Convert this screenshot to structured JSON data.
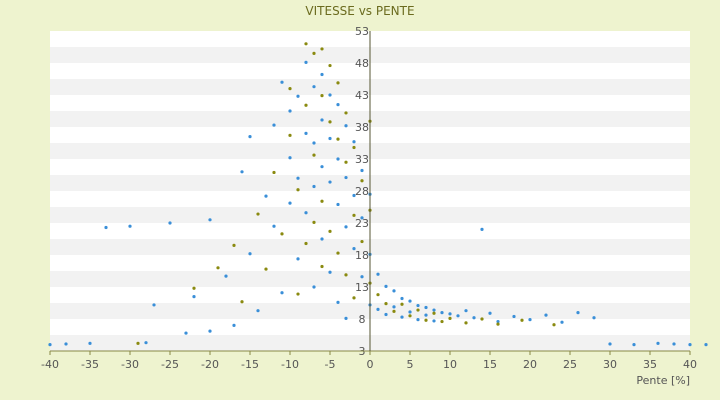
{
  "chart_data": {
    "type": "scatter",
    "title": "VITESSE vs PENTE",
    "xlabel": "Pente [%]",
    "ylabel": "",
    "xlim": [
      -40,
      40
    ],
    "ylim": [
      3,
      53
    ],
    "xticks": [
      -40,
      -35,
      -30,
      -25,
      -20,
      -15,
      -10,
      -5,
      0,
      5,
      10,
      15,
      20,
      25,
      30,
      35,
      40
    ],
    "yticks": [
      3,
      8,
      13,
      18,
      23,
      28,
      33,
      38,
      43,
      48,
      53
    ],
    "grid": "alternating horizontal bands",
    "legend": "none",
    "series": [
      {
        "color": "#3a8fd8",
        "points": [
          [
            -40,
            4.0
          ],
          [
            -38,
            4.1
          ],
          [
            -35,
            4.2
          ],
          [
            -33,
            22.3
          ],
          [
            -30,
            22.5
          ],
          [
            -28,
            4.3
          ],
          [
            -27,
            10.2
          ],
          [
            -25,
            23.0
          ],
          [
            -23,
            5.8
          ],
          [
            -22,
            11.5
          ],
          [
            -20,
            23.5
          ],
          [
            -20,
            6.1
          ],
          [
            -18,
            14.7
          ],
          [
            -17,
            7.0
          ],
          [
            -16,
            31.0
          ],
          [
            -15,
            36.5
          ],
          [
            -15,
            18.2
          ],
          [
            -14,
            9.3
          ],
          [
            -13,
            27.2
          ],
          [
            -12,
            38.3
          ],
          [
            -12,
            22.5
          ],
          [
            -11,
            45.0
          ],
          [
            -11,
            12.1
          ],
          [
            -10,
            40.5
          ],
          [
            -10,
            33.2
          ],
          [
            -10,
            26.1
          ],
          [
            -9,
            42.8
          ],
          [
            -9,
            30.0
          ],
          [
            -9,
            17.4
          ],
          [
            -8,
            48.1
          ],
          [
            -8,
            37.0
          ],
          [
            -8,
            24.6
          ],
          [
            -7,
            44.3
          ],
          [
            -7,
            35.5
          ],
          [
            -7,
            28.7
          ],
          [
            -7,
            13.0
          ],
          [
            -6,
            46.2
          ],
          [
            -6,
            39.1
          ],
          [
            -6,
            31.8
          ],
          [
            -6,
            20.5
          ],
          [
            -5,
            43.0
          ],
          [
            -5,
            36.2
          ],
          [
            -5,
            29.4
          ],
          [
            -5,
            15.3
          ],
          [
            -4,
            41.5
          ],
          [
            -4,
            33.0
          ],
          [
            -4,
            25.9
          ],
          [
            -4,
            10.6
          ],
          [
            -3,
            38.2
          ],
          [
            -3,
            30.1
          ],
          [
            -3,
            22.4
          ],
          [
            -3,
            8.1
          ],
          [
            -2,
            35.7
          ],
          [
            -2,
            27.3
          ],
          [
            -2,
            19.0
          ],
          [
            -1,
            31.2
          ],
          [
            -1,
            23.8
          ],
          [
            -1,
            14.6
          ],
          [
            0,
            27.5
          ],
          [
            0,
            18.1
          ],
          [
            0,
            10.2
          ],
          [
            1,
            15.0
          ],
          [
            1,
            9.5
          ],
          [
            2,
            13.1
          ],
          [
            2,
            8.7
          ],
          [
            3,
            12.4
          ],
          [
            3,
            9.9
          ],
          [
            4,
            11.2
          ],
          [
            4,
            8.3
          ],
          [
            5,
            10.8
          ],
          [
            5,
            9.1
          ],
          [
            6,
            10.1
          ],
          [
            6,
            7.9
          ],
          [
            7,
            9.8
          ],
          [
            7,
            8.6
          ],
          [
            8,
            9.4
          ],
          [
            8,
            7.7
          ],
          [
            9,
            9.0
          ],
          [
            10,
            8.8
          ],
          [
            11,
            8.5
          ],
          [
            12,
            9.3
          ],
          [
            13,
            8.2
          ],
          [
            14,
            22.0
          ],
          [
            15,
            8.9
          ],
          [
            16,
            7.6
          ],
          [
            18,
            8.4
          ],
          [
            20,
            7.9
          ],
          [
            22,
            8.6
          ],
          [
            24,
            7.5
          ],
          [
            26,
            9.0
          ],
          [
            28,
            8.2
          ],
          [
            30,
            4.1
          ],
          [
            33,
            4.0
          ],
          [
            36,
            4.2
          ],
          [
            38,
            4.1
          ],
          [
            40,
            4.0
          ],
          [
            42,
            4.0
          ]
        ]
      },
      {
        "color": "#8a8a10",
        "points": [
          [
            -29,
            4.2
          ],
          [
            -22,
            12.8
          ],
          [
            -19,
            16.0
          ],
          [
            -17,
            19.5
          ],
          [
            -16,
            10.7
          ],
          [
            -14,
            24.4
          ],
          [
            -13,
            15.8
          ],
          [
            -12,
            30.9
          ],
          [
            -11,
            21.3
          ],
          [
            -10,
            44.0
          ],
          [
            -10,
            36.7
          ],
          [
            -9,
            28.2
          ],
          [
            -9,
            11.9
          ],
          [
            -8,
            51.0
          ],
          [
            -8,
            41.4
          ],
          [
            -8,
            19.8
          ],
          [
            -7,
            49.5
          ],
          [
            -7,
            33.6
          ],
          [
            -7,
            23.1
          ],
          [
            -6,
            50.2
          ],
          [
            -6,
            42.9
          ],
          [
            -6,
            26.4
          ],
          [
            -6,
            16.2
          ],
          [
            -5,
            47.6
          ],
          [
            -5,
            38.8
          ],
          [
            -5,
            21.7
          ],
          [
            -4,
            44.9
          ],
          [
            -4,
            36.1
          ],
          [
            -4,
            18.3
          ],
          [
            -3,
            40.2
          ],
          [
            -3,
            32.5
          ],
          [
            -3,
            14.9
          ],
          [
            -2,
            34.8
          ],
          [
            -2,
            24.2
          ],
          [
            -2,
            11.3
          ],
          [
            -1,
            29.6
          ],
          [
            -1,
            20.1
          ],
          [
            0,
            38.9
          ],
          [
            0,
            25.0
          ],
          [
            0,
            13.6
          ],
          [
            1,
            11.8
          ],
          [
            2,
            10.4
          ],
          [
            3,
            9.2
          ],
          [
            4,
            10.3
          ],
          [
            5,
            8.5
          ],
          [
            6,
            9.4
          ],
          [
            7,
            7.8
          ],
          [
            8,
            8.9
          ],
          [
            9,
            7.6
          ],
          [
            10,
            8.1
          ],
          [
            12,
            7.4
          ],
          [
            14,
            8.0
          ],
          [
            16,
            7.2
          ],
          [
            19,
            7.8
          ],
          [
            23,
            7.1
          ]
        ]
      }
    ]
  }
}
